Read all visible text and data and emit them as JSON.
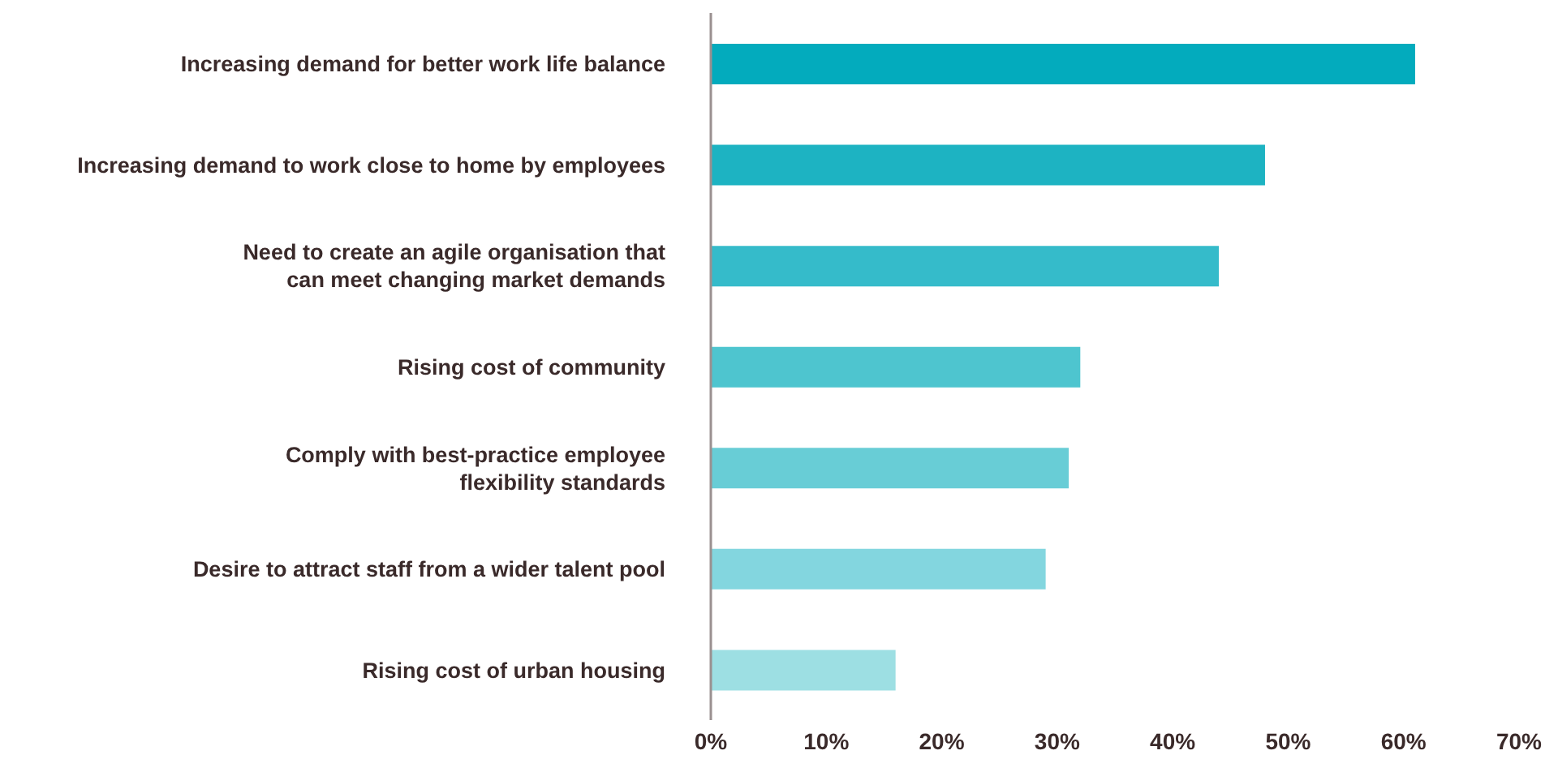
{
  "chart_data": {
    "type": "bar",
    "orientation": "horizontal",
    "categories": [
      "Increasing demand for better work life balance",
      "Increasing demand to work close to home by employees",
      "Need to create an agile organisation that can meet changing market demands",
      "Rising cost of community",
      "Comply with best-practice employee flexibility standards",
      "Desire to attract staff from a wider talent pool",
      "Rising cost of urban housing"
    ],
    "values": [
      61,
      48,
      44,
      32,
      31,
      29,
      16
    ],
    "colors": [
      "#03abbd",
      "#1db3c2",
      "#35bbca",
      "#4ec5cf",
      "#68cdd6",
      "#83d6df",
      "#9ddfe3"
    ],
    "xlim": [
      0,
      70
    ],
    "xticks": [
      {
        "value": 0,
        "label": "0%"
      },
      {
        "value": 10,
        "label": "10%"
      },
      {
        "value": 20,
        "label": "20%"
      },
      {
        "value": 30,
        "label": "30%"
      },
      {
        "value": 40,
        "label": "40%"
      },
      {
        "value": 50,
        "label": "50%"
      },
      {
        "value": 60,
        "label": "60%"
      },
      {
        "value": 70,
        "label": "70%"
      }
    ],
    "grid": false,
    "legend": false
  }
}
